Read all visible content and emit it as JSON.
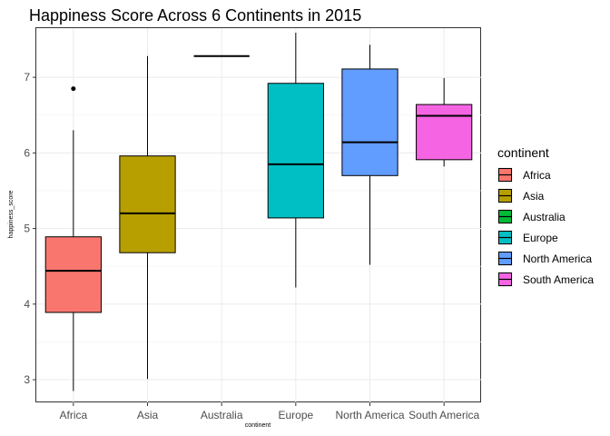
{
  "chart_data": {
    "type": "box",
    "title": "Happiness Score Across 6 Continents in 2015",
    "xlabel": "continent",
    "ylabel": "happiness_score",
    "ylim": [
      2.7,
      7.65
    ],
    "yticks": [
      3,
      4,
      5,
      6,
      7
    ],
    "grid": true,
    "legend_title": "continent",
    "legend_position": "right",
    "categories": [
      "Africa",
      "Asia",
      "Australia",
      "Europe",
      "North America",
      "South America"
    ],
    "series": [
      {
        "category": "Africa",
        "color": "#F8766D",
        "min": 2.85,
        "q1": 3.89,
        "median": 4.44,
        "q3": 4.89,
        "max": 6.3,
        "outliers": [
          6.85
        ]
      },
      {
        "category": "Asia",
        "color": "#B79F00",
        "min": 3.01,
        "q1": 4.68,
        "median": 5.2,
        "q3": 5.96,
        "max": 7.28,
        "outliers": []
      },
      {
        "category": "Australia",
        "color": "#00BA38",
        "min": 7.28,
        "q1": 7.28,
        "median": 7.28,
        "q3": 7.28,
        "max": 7.28,
        "outliers": []
      },
      {
        "category": "Europe",
        "color": "#00BFC4",
        "min": 4.22,
        "q1": 5.14,
        "median": 5.85,
        "q3": 6.92,
        "max": 7.59,
        "outliers": []
      },
      {
        "category": "North America",
        "color": "#619CFF",
        "min": 4.52,
        "q1": 5.7,
        "median": 6.14,
        "q3": 7.11,
        "max": 7.43,
        "outliers": []
      },
      {
        "category": "South America",
        "color": "#F564E3",
        "min": 5.82,
        "q1": 5.91,
        "median": 6.49,
        "q3": 6.64,
        "max": 6.99,
        "outliers": []
      }
    ]
  }
}
